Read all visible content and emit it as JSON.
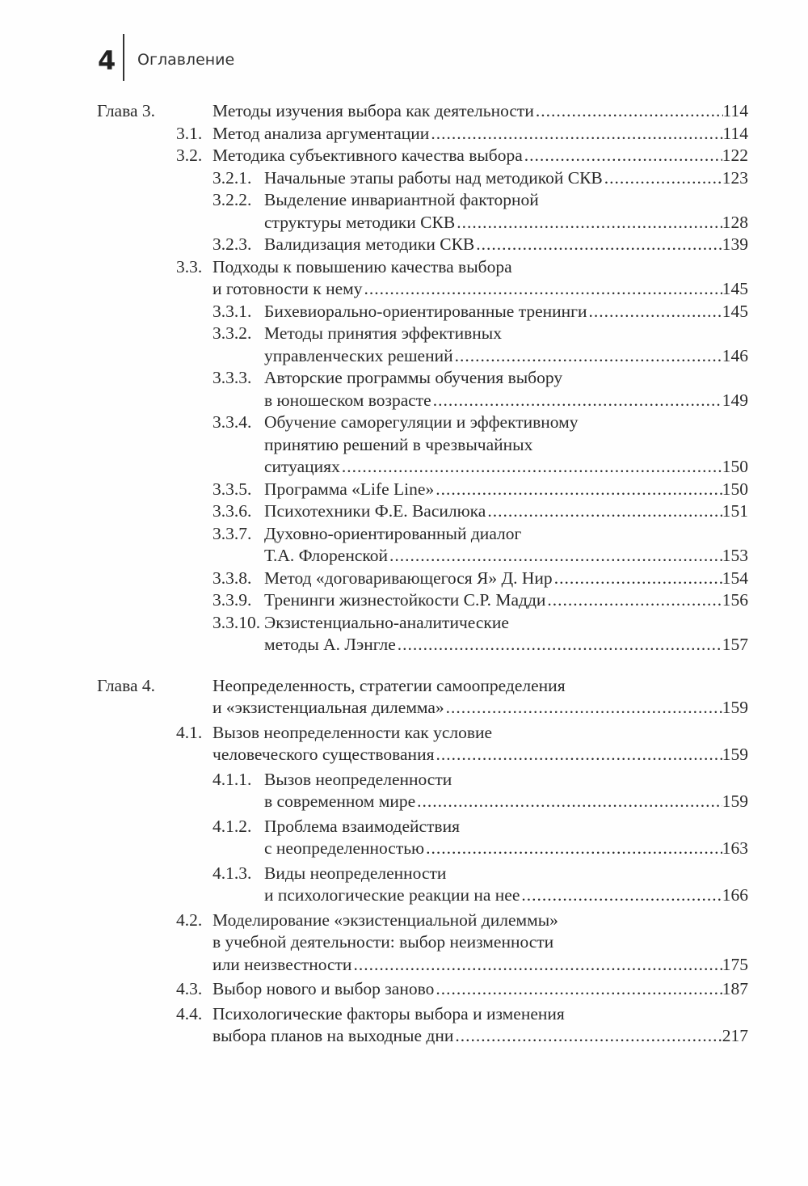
{
  "header": {
    "page_number": "4",
    "title": "Оглавление"
  },
  "chapters": [
    {
      "entries": [
        {
          "level": 1,
          "num": "Глава 3.",
          "lines": [
            "Методы изучения выбора как деятельности"
          ],
          "page": "114"
        },
        {
          "level": 2,
          "num": "3.1.",
          "lines": [
            "Метод анализа аргументации"
          ],
          "page": "114"
        },
        {
          "level": 2,
          "num": "3.2.",
          "lines": [
            "Методика субъективного качества выбора"
          ],
          "page": "122"
        },
        {
          "level": 3,
          "num": "3.2.1.",
          "lines": [
            "Начальные этапы работы над методикой СКВ"
          ],
          "page": "123"
        },
        {
          "level": 3,
          "num": "3.2.2.",
          "lines": [
            "Выделение инвариантной факторной",
            "структуры методики СКВ"
          ],
          "page": "128"
        },
        {
          "level": 3,
          "num": "3.2.3.",
          "lines": [
            "Валидизация методики СКВ"
          ],
          "page": "139"
        },
        {
          "level": 2,
          "num": "3.3.",
          "lines": [
            "Подходы к повышению качества выбора",
            "и готовности к нему"
          ],
          "page": "145"
        },
        {
          "level": 3,
          "num": "3.3.1.",
          "lines": [
            "Бихевиорально-ориентированные тренинги"
          ],
          "page": "145"
        },
        {
          "level": 3,
          "num": "3.3.2.",
          "lines": [
            "Методы принятия эффективных",
            "управленческих решений"
          ],
          "page": "146"
        },
        {
          "level": 3,
          "num": "3.3.3.",
          "lines": [
            "Авторские программы обучения выбору",
            "в юношеском возрасте"
          ],
          "page": "149"
        },
        {
          "level": 3,
          "num": "3.3.4.",
          "lines": [
            "Обучение саморегуляции и эффективному",
            "принятию решений в чрезвычайных",
            "ситуациях"
          ],
          "page": "150"
        },
        {
          "level": 3,
          "num": "3.3.5.",
          "lines": [
            "Программа «Life Line»"
          ],
          "page": "150"
        },
        {
          "level": 3,
          "num": "3.3.6.",
          "lines": [
            "Психотехники Ф.Е. Василюка"
          ],
          "page": "151"
        },
        {
          "level": 3,
          "num": "3.3.7.",
          "lines": [
            "Духовно-ориентированный диалог",
            "Т.А. Флоренской"
          ],
          "page": "153"
        },
        {
          "level": 3,
          "num": "3.3.8.",
          "lines": [
            "Метод «договаривающегося Я» Д. Нир"
          ],
          "page": "154"
        },
        {
          "level": 3,
          "num": "3.3.9.",
          "lines": [
            "Тренинги жизнестойкости С.Р. Мадди"
          ],
          "page": "156"
        },
        {
          "level": 3,
          "num": "3.3.10.",
          "lines": [
            "Экзистенциально-аналитические",
            "методы А. Лэнгле"
          ],
          "page": "157"
        }
      ]
    },
    {
      "entries": [
        {
          "level": 1,
          "num": "Глава 4.",
          "lines": [
            "Неопределенность, стратегии самоопределения",
            "и «экзистенциальная дилемма»"
          ],
          "page": "159"
        },
        {
          "level": 2,
          "num": "4.1.",
          "lines": [
            "Вызов неопределенности как условие",
            "человеческого существования"
          ],
          "page": "159"
        },
        {
          "level": 3,
          "num": "4.1.1.",
          "lines": [
            "Вызов неопределенности",
            "в современном мире"
          ],
          "page": "159"
        },
        {
          "level": 3,
          "num": "4.1.2.",
          "lines": [
            "Проблема взаимодействия",
            "с неопределенностью"
          ],
          "page": "163"
        },
        {
          "level": 3,
          "num": "4.1.3.",
          "lines": [
            "Виды неопределенности",
            "и психологические реакции на нее"
          ],
          "page": "166"
        },
        {
          "level": 2,
          "num": "4.2.",
          "lines": [
            "Моделирование «экзистенциальной дилеммы»",
            "в учебной деятельности: выбор неизменности",
            "или неизвестности"
          ],
          "page": "175"
        },
        {
          "level": 2,
          "num": "4.3.",
          "lines": [
            "Выбор нового и выбор заново"
          ],
          "page": "187"
        },
        {
          "level": 2,
          "num": "4.4.",
          "lines": [
            "Психологические факторы выбора и изменения",
            "выбора планов на выходные дни"
          ],
          "page": "217"
        }
      ]
    }
  ]
}
